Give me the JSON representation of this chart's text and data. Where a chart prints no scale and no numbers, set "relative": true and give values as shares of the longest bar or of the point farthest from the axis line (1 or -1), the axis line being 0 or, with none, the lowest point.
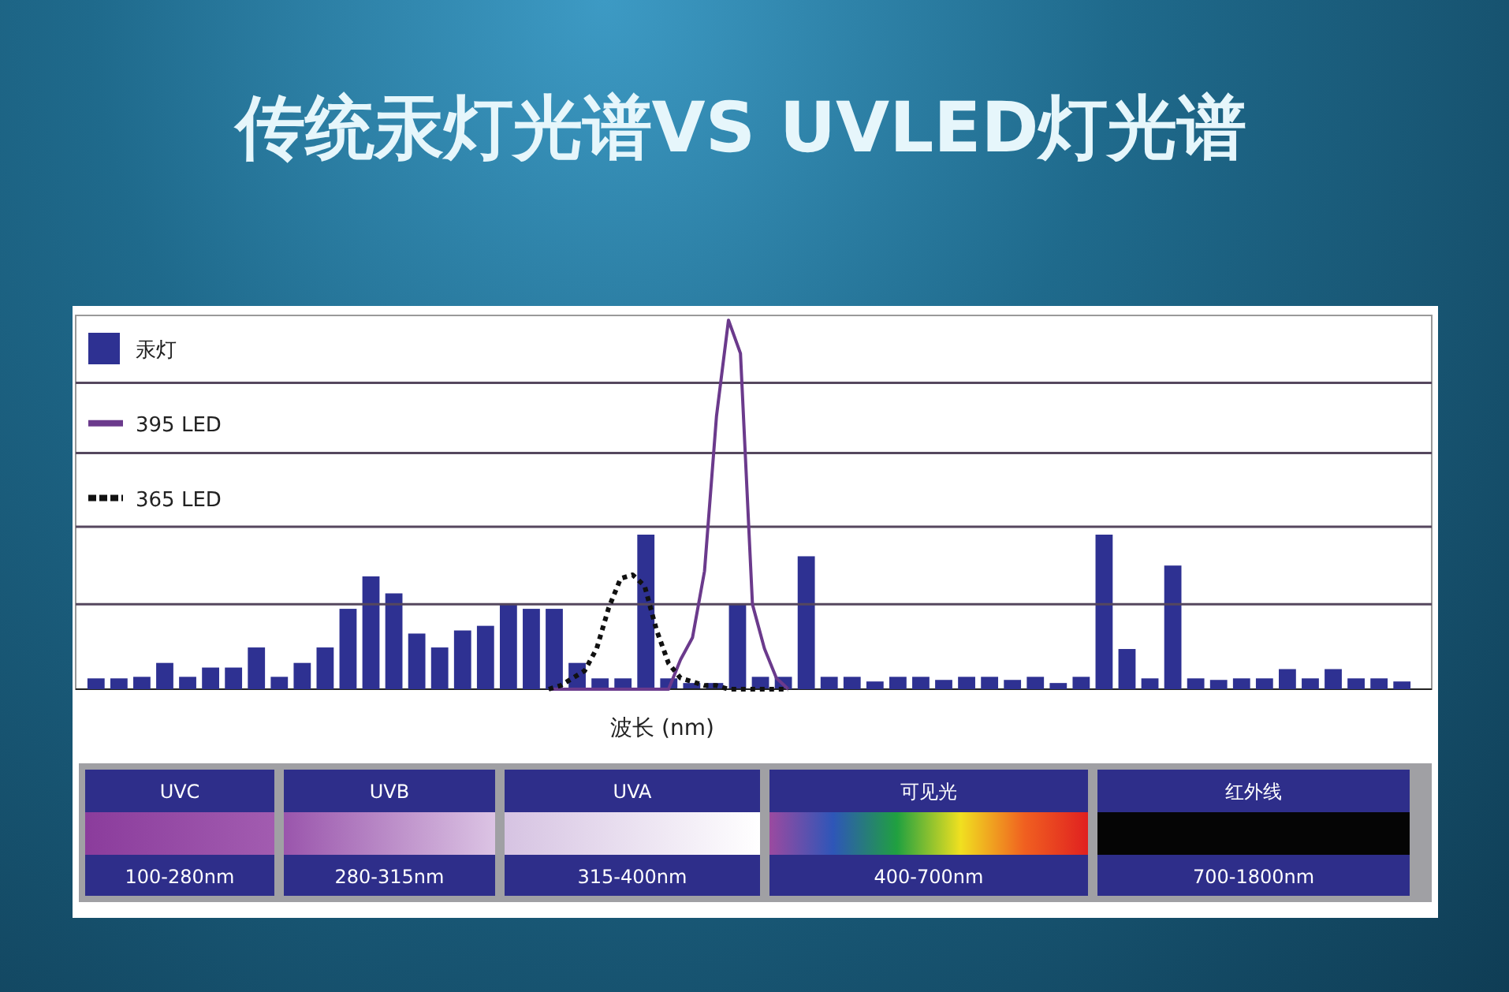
{
  "chart_data": [
    {
      "type": "bar",
      "title": "传统汞灯光谱VS UVLED灯光谱",
      "xlabel": "波长 (nm)",
      "relative": true,
      "legend": "top left",
      "categories": [
        null,
        null,
        null,
        null,
        null,
        null,
        null,
        null,
        null,
        null,
        null,
        null,
        null,
        null,
        null,
        null,
        null,
        null,
        null,
        null,
        null,
        null,
        null,
        null,
        null,
        null,
        null,
        null,
        null,
        null,
        null,
        null,
        null,
        null,
        null,
        null,
        null,
        null,
        null,
        null,
        null,
        null,
        null,
        null,
        null,
        null,
        null,
        null,
        null,
        null,
        null,
        null,
        null,
        null,
        null,
        null,
        null,
        null
      ],
      "series": [
        {
          "name": "汞灯",
          "color": "#2e3192",
          "values": [
            0.07,
            0.07,
            0.08,
            0.17,
            0.08,
            0.14,
            0.14,
            0.27,
            0.08,
            0.17,
            0.27,
            0.52,
            0.73,
            0.62,
            0.36,
            0.27,
            0.38,
            0.41,
            0.55,
            0.52,
            0.52,
            0.17,
            0.07,
            0.07,
            1,
            0.07,
            0.04,
            0.04,
            0.55,
            0.08,
            0.08,
            0.86,
            0.08,
            0.08,
            0.05,
            0.08,
            0.08,
            0.06,
            0.08,
            0.08,
            0.06,
            0.08,
            0.04,
            0.08,
            1,
            0.26,
            0.07,
            0.8,
            0.07,
            0.06,
            0.07,
            0.07,
            0.13,
            0.07,
            0.13,
            0.07,
            0.07,
            0.05
          ]
        }
      ],
      "annotations": [
        "UVC",
        "100-280nm",
        "UVB",
        "280-315nm",
        "UVA",
        "315-400nm",
        "可见光",
        "400-700nm",
        "红外线",
        "700-1800nm"
      ]
    },
    {
      "type": "line",
      "relative": true,
      "legend": "top left",
      "ref_lines": [
        {
          "axis": "y",
          "value": 0.23,
          "color": "#55475e"
        },
        {
          "axis": "y",
          "value": 0.44,
          "color": "#55475e"
        },
        {
          "axis": "y",
          "value": 0.64,
          "color": "#55475e"
        },
        {
          "axis": "y",
          "value": 0.83,
          "color": "#55475e"
        }
      ],
      "categories": [
        null,
        null,
        null,
        null,
        null,
        null,
        null,
        null,
        null,
        null,
        null,
        null,
        null,
        null,
        null,
        null,
        null,
        null,
        null,
        null,
        null
      ],
      "series": [
        {
          "name": "395 LED",
          "color": "#6b3a8c",
          "line_style": "solid",
          "values": [
            0,
            0,
            0,
            0,
            0,
            0,
            0,
            0,
            0,
            0,
            0,
            0.08,
            0.14,
            0.32,
            0.74,
            1,
            0.91,
            0.23,
            0.11,
            0.03,
            0
          ]
        },
        {
          "name": "365 LED",
          "color": "#111111",
          "line_style": "dotted",
          "values": [
            0,
            0.01,
            0.03,
            0.05,
            0.11,
            0.22,
            0.3,
            0.31,
            0.28,
            0.16,
            0.07,
            0.03,
            0.02,
            0.01,
            0.01,
            0,
            0,
            0,
            0,
            0,
            0
          ]
        }
      ]
    }
  ]
}
